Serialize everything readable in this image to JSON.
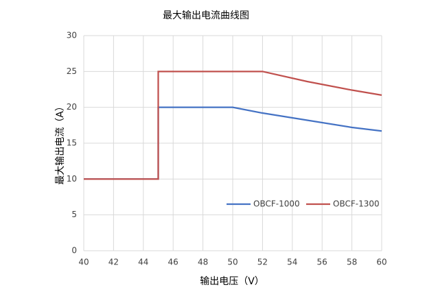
{
  "chart_data": {
    "type": "line",
    "title": "最大输出电流曲线图",
    "x_label": "输出电压（V）",
    "y_label": "最大输出电流（A）",
    "series": [
      {
        "name": "OBCF-1000",
        "color": "#4472c4",
        "x": [
          40,
          45,
          45,
          50,
          52,
          55,
          58,
          60
        ],
        "values": [
          10,
          10,
          20,
          20,
          19.2,
          18.2,
          17.2,
          16.7
        ]
      },
      {
        "name": "OBCF-1300",
        "color": "#c0504d",
        "x": [
          40,
          45,
          45,
          52,
          55,
          58,
          60
        ],
        "values": [
          10,
          10,
          25,
          25,
          23.6,
          22.4,
          21.7
        ]
      }
    ],
    "xlim": [
      40,
      60
    ],
    "xticks": [
      40,
      42,
      44,
      46,
      48,
      50,
      52,
      54,
      56,
      58,
      60
    ],
    "ylim": [
      0,
      30
    ],
    "yticks": [
      0,
      5,
      10,
      15,
      20,
      25,
      30
    ],
    "grid": true
  }
}
